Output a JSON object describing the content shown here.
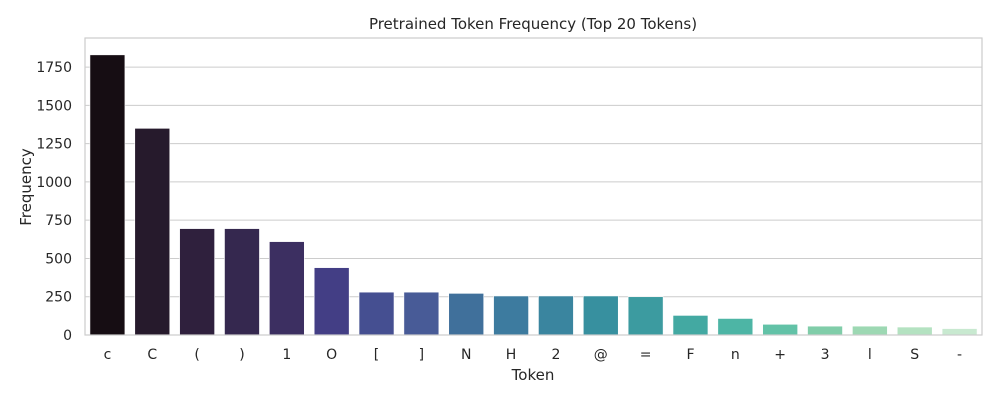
{
  "chart_data": {
    "type": "bar",
    "title": "Pretrained Token Frequency (Top 20 Tokens)",
    "xlabel": "Token",
    "ylabel": "Frequency",
    "ylim": [
      0,
      1940
    ],
    "yticks": [
      0,
      250,
      500,
      750,
      1000,
      1250,
      1500,
      1750
    ],
    "grid": true,
    "categories": [
      "c",
      "C",
      "(",
      ")",
      "1",
      "O",
      "[",
      "]",
      "N",
      "H",
      "2",
      "@",
      "=",
      "F",
      "n",
      "+",
      "3",
      "l",
      "S",
      "-"
    ],
    "values": [
      1830,
      1350,
      695,
      695,
      610,
      440,
      280,
      280,
      272,
      255,
      255,
      255,
      250,
      128,
      108,
      70,
      58,
      58,
      52,
      42
    ],
    "colors": [
      "#160d13",
      "#261a2c",
      "#2f203d",
      "#35284f",
      "#3c2f61",
      "#433e85",
      "#454f91",
      "#485b97",
      "#40709b",
      "#3d7b9f",
      "#3a859f",
      "#37909f",
      "#3c9ba0",
      "#43a9a2",
      "#4db5a5",
      "#62c2a7",
      "#80cda9",
      "#9dd8b3",
      "#b4e2c1",
      "#c8e9d0"
    ]
  }
}
